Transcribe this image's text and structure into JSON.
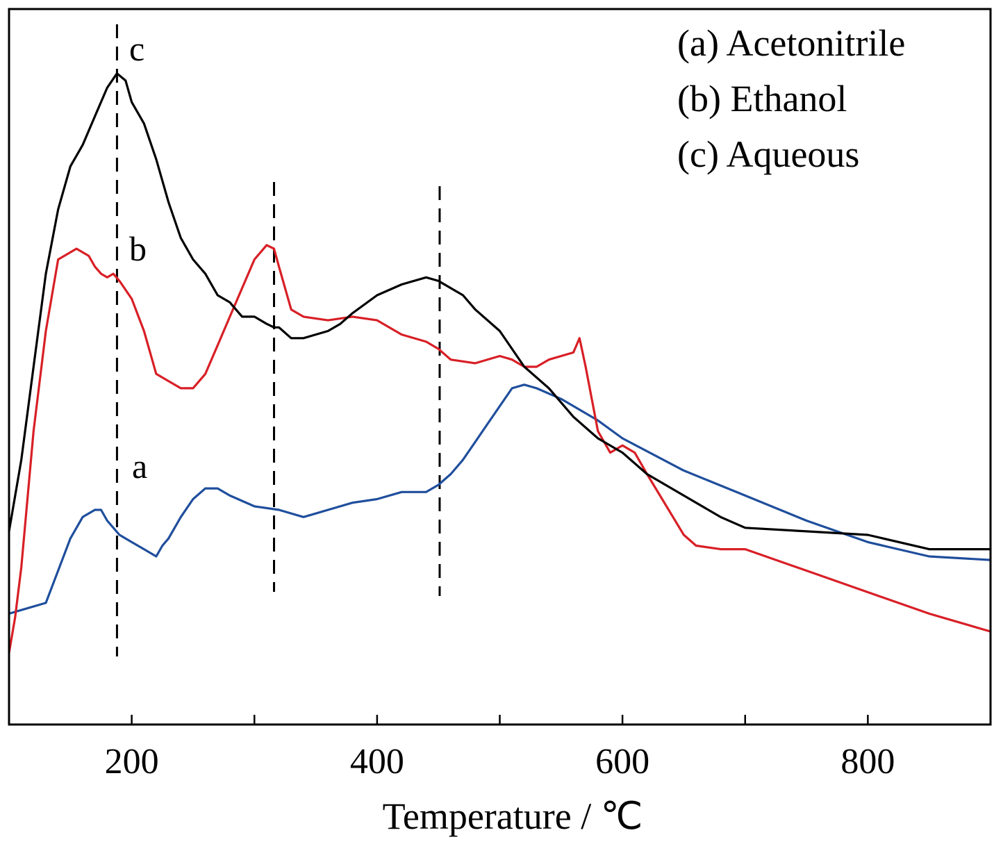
{
  "chart_data": {
    "type": "line",
    "title": "",
    "xlabel": "Temperature / ℃",
    "ylabel": "",
    "xlim": [
      100,
      900
    ],
    "ylim": [
      0,
      1
    ],
    "x_ticks": [
      200,
      400,
      600,
      800
    ],
    "y_ticks": [],
    "grid": false,
    "legend_position": "top-right",
    "legend": [
      "(a) Acetonitrile",
      "(b) Ethanol",
      "(c) Aqueous"
    ],
    "reference_lines_x": [
      188,
      316,
      451
    ],
    "series": [
      {
        "name": "(a) Acetonitrile",
        "label": "a",
        "color": "#1f4e9c",
        "x": [
          100,
          110,
          130,
          150,
          160,
          170,
          175,
          180,
          190,
          200,
          210,
          220,
          225,
          230,
          240,
          250,
          260,
          270,
          280,
          300,
          320,
          340,
          350,
          360,
          380,
          400,
          420,
          440,
          450,
          460,
          470,
          480,
          490,
          500,
          510,
          520,
          530,
          550,
          580,
          600,
          650,
          700,
          750,
          800,
          850,
          900
        ],
        "y": [
          0.155,
          0.16,
          0.17,
          0.26,
          0.29,
          0.3,
          0.3,
          0.285,
          0.265,
          0.255,
          0.245,
          0.235,
          0.25,
          0.26,
          0.29,
          0.315,
          0.33,
          0.33,
          0.32,
          0.305,
          0.3,
          0.29,
          0.295,
          0.3,
          0.31,
          0.315,
          0.325,
          0.325,
          0.335,
          0.35,
          0.37,
          0.395,
          0.42,
          0.445,
          0.47,
          0.475,
          0.47,
          0.455,
          0.425,
          0.4,
          0.355,
          0.32,
          0.285,
          0.255,
          0.235,
          0.23
        ]
      },
      {
        "name": "(b) Ethanol",
        "label": "b",
        "color": "#d81f26",
        "x": [
          100,
          105,
          110,
          120,
          130,
          140,
          150,
          155,
          160,
          165,
          170,
          175,
          180,
          185,
          190,
          200,
          210,
          220,
          230,
          240,
          250,
          260,
          270,
          280,
          300,
          310,
          316,
          320,
          330,
          340,
          360,
          380,
          400,
          420,
          440,
          450,
          460,
          480,
          500,
          510,
          520,
          530,
          540,
          560,
          565,
          570,
          580,
          590,
          600,
          610,
          620,
          650,
          660,
          680,
          700,
          750,
          800,
          850,
          900
        ],
        "y": [
          0.1,
          0.15,
          0.22,
          0.41,
          0.55,
          0.65,
          0.66,
          0.665,
          0.66,
          0.655,
          0.64,
          0.63,
          0.625,
          0.63,
          0.62,
          0.595,
          0.55,
          0.49,
          0.48,
          0.47,
          0.47,
          0.49,
          0.53,
          0.57,
          0.65,
          0.67,
          0.665,
          0.64,
          0.58,
          0.57,
          0.565,
          0.57,
          0.565,
          0.545,
          0.535,
          0.525,
          0.51,
          0.505,
          0.515,
          0.51,
          0.5,
          0.5,
          0.51,
          0.52,
          0.54,
          0.5,
          0.41,
          0.38,
          0.39,
          0.38,
          0.35,
          0.265,
          0.25,
          0.245,
          0.245,
          0.215,
          0.185,
          0.155,
          0.13
        ]
      },
      {
        "name": "(c) Aqueous",
        "label": "c",
        "color": "#000000",
        "x": [
          100,
          110,
          120,
          130,
          140,
          150,
          160,
          170,
          180,
          188,
          195,
          200,
          210,
          220,
          230,
          240,
          250,
          260,
          270,
          280,
          290,
          300,
          310,
          316,
          320,
          330,
          340,
          350,
          360,
          370,
          380,
          400,
          420,
          440,
          450,
          460,
          470,
          480,
          500,
          520,
          540,
          560,
          580,
          600,
          620,
          650,
          680,
          700,
          750,
          800,
          850,
          900
        ],
        "y": [
          0.27,
          0.37,
          0.5,
          0.63,
          0.72,
          0.78,
          0.81,
          0.85,
          0.89,
          0.91,
          0.9,
          0.87,
          0.84,
          0.79,
          0.73,
          0.68,
          0.65,
          0.63,
          0.6,
          0.59,
          0.57,
          0.57,
          0.56,
          0.555,
          0.555,
          0.54,
          0.54,
          0.545,
          0.55,
          0.56,
          0.575,
          0.6,
          0.615,
          0.625,
          0.62,
          0.61,
          0.6,
          0.58,
          0.55,
          0.5,
          0.47,
          0.43,
          0.4,
          0.38,
          0.35,
          0.32,
          0.29,
          0.275,
          0.27,
          0.265,
          0.245,
          0.245
        ]
      }
    ]
  }
}
